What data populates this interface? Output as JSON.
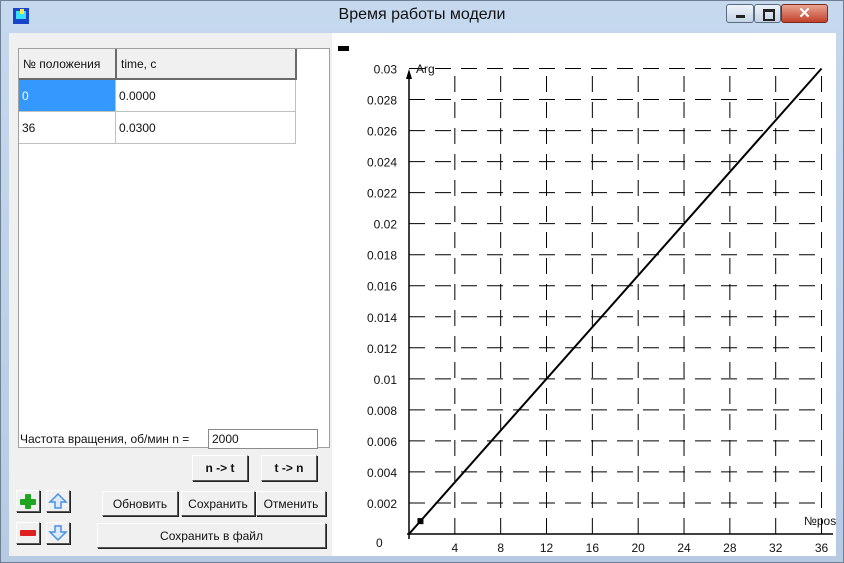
{
  "window": {
    "title": "Время работы модели"
  },
  "table": {
    "headers": [
      "№ положения",
      "time, c"
    ],
    "rows": [
      {
        "position": "0",
        "time": "0.0000"
      },
      {
        "position": "36",
        "time": "0.0300"
      }
    ]
  },
  "controls": {
    "speed_label": "Частота вращения, об/мин   n =",
    "speed_value": "2000",
    "n_to_t": "n -> t",
    "t_to_n": "t -> n",
    "refresh": "Обновить",
    "save": "Сохранить",
    "cancel": "Отменить",
    "save_file": "Сохранить в файл"
  },
  "icons": {
    "add": "plus-icon",
    "remove": "minus-icon",
    "up": "arrow-up-icon",
    "down": "arrow-down-icon",
    "accent_green": "#1fa51f",
    "accent_red": "#e02020",
    "accent_blue": "#4a8fe0"
  },
  "chart_data": {
    "type": "line",
    "xlabel": "№pos",
    "ylabel": "Arg",
    "xlim": [
      0,
      37
    ],
    "ylim": [
      0,
      0.031
    ],
    "x_ticks": [
      4,
      8,
      12,
      16,
      20,
      24,
      28,
      32,
      36
    ],
    "y_ticks": [
      0.002,
      0.004,
      0.006,
      0.008,
      0.01,
      0.012,
      0.014,
      0.016,
      0.018,
      0.02,
      0.022,
      0.024,
      0.026,
      0.028,
      0.03
    ],
    "x_tick_labels": [
      "4",
      "8",
      "12",
      "16",
      "20",
      "24",
      "28",
      "32",
      "36"
    ],
    "y_tick_labels": [
      "0.002",
      "0.004",
      "0.006",
      "0.008",
      "0.01",
      "0.012",
      "0.014",
      "0.016",
      "0.018",
      "0.02",
      "0.022",
      "0.024",
      "0.026",
      "0.028",
      "0.03"
    ],
    "origin_label": "0",
    "grid": true,
    "series": [
      {
        "x": [
          0,
          36
        ],
        "y": [
          0,
          0.03
        ]
      }
    ],
    "markers": [
      {
        "x": 1,
        "y": 0.00083
      }
    ]
  }
}
